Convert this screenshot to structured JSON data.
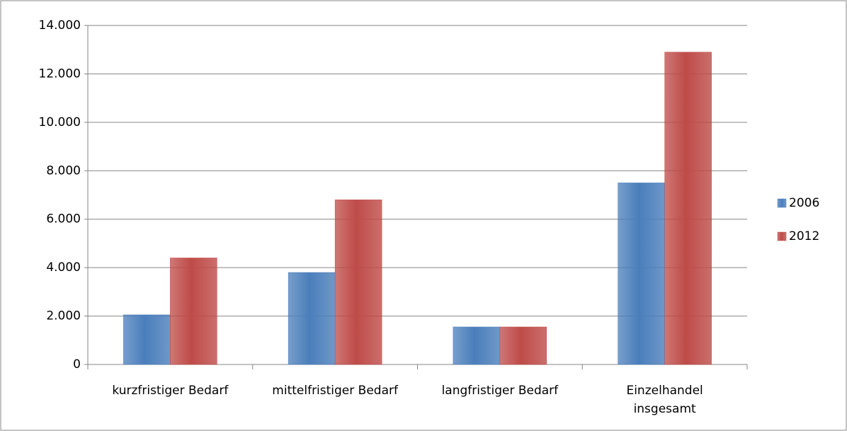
{
  "chart_data": {
    "type": "bar",
    "categories": [
      "kurzfristiger Bedarf",
      "mittelfristiger Bedarf",
      "langfristiger Bedarf",
      "Einzelhandel\ninsgesamt"
    ],
    "series": [
      {
        "name": "2006",
        "color": "#4a7ebb",
        "values": [
          2050,
          3800,
          1550,
          7500
        ]
      },
      {
        "name": "2012",
        "color": "#be4b48",
        "values": [
          4400,
          6800,
          1550,
          12900
        ]
      }
    ],
    "ylim": [
      0,
      14000
    ],
    "yticks": [
      0,
      {
        "value": 2000,
        "label": "2.000"
      },
      {
        "value": 4000,
        "label": "4.000"
      },
      {
        "value": 6000,
        "label": "6.000"
      },
      {
        "value": 8000,
        "label": "8.000"
      },
      {
        "value": 10000,
        "label": "10.000"
      },
      {
        "value": 12000,
        "label": "12.000"
      },
      {
        "value": 14000,
        "label": "14.000"
      }
    ],
    "grid": true,
    "legend": "right"
  }
}
